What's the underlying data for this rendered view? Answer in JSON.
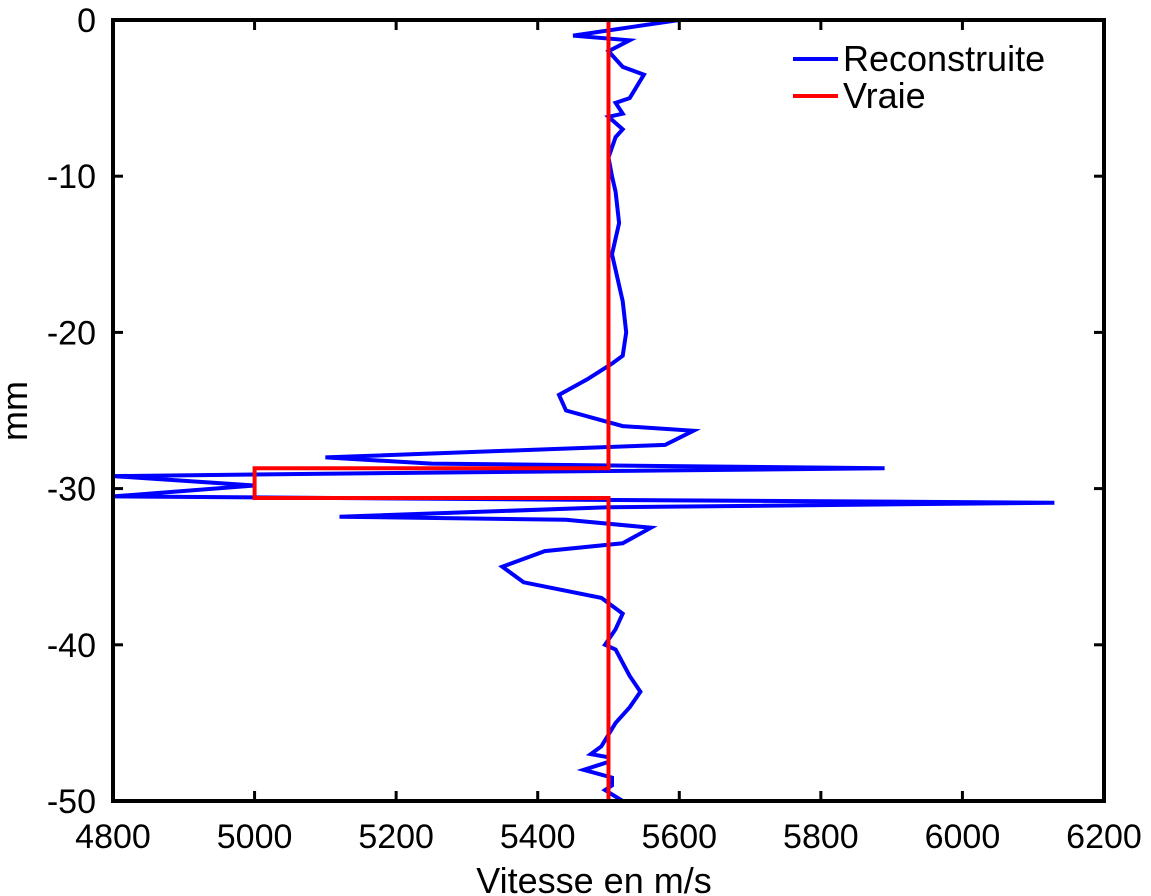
{
  "chart_data": {
    "type": "line",
    "title": "",
    "xlabel": "Vitesse en m/s",
    "ylabel": "mm",
    "xlim": [
      4800,
      6200
    ],
    "ylim": [
      -50,
      0
    ],
    "xticks": [
      4800,
      5000,
      5200,
      5400,
      5600,
      5800,
      6000,
      6200
    ],
    "yticks": [
      0,
      -10,
      -20,
      -30,
      -40,
      -50
    ],
    "grid": false,
    "legend_position": "top-right",
    "series": [
      {
        "name": "Reconstruite",
        "color": "#0000ff",
        "points": [
          [
            5600,
            0
          ],
          [
            5450,
            -1
          ],
          [
            5530,
            -1.3
          ],
          [
            5500,
            -2
          ],
          [
            5520,
            -3
          ],
          [
            5550,
            -3.5
          ],
          [
            5530,
            -5
          ],
          [
            5510,
            -5.3
          ],
          [
            5520,
            -6
          ],
          [
            5500,
            -6.2
          ],
          [
            5520,
            -7
          ],
          [
            5510,
            -7.5
          ],
          [
            5500,
            -8.8
          ],
          [
            5505,
            -10
          ],
          [
            5510,
            -11
          ],
          [
            5515,
            -13
          ],
          [
            5505,
            -15
          ],
          [
            5510,
            -16
          ],
          [
            5520,
            -18
          ],
          [
            5525,
            -20
          ],
          [
            5520,
            -21.5
          ],
          [
            5505,
            -22
          ],
          [
            5470,
            -23
          ],
          [
            5430,
            -24
          ],
          [
            5440,
            -25
          ],
          [
            5520,
            -26
          ],
          [
            5620,
            -26.3
          ],
          [
            5580,
            -27.2
          ],
          [
            5400,
            -27.5
          ],
          [
            5100,
            -28
          ],
          [
            5250,
            -28.4
          ],
          [
            5890,
            -28.7
          ],
          [
            5200,
            -29
          ],
          [
            4800,
            -29.2
          ],
          [
            5000,
            -29.8
          ],
          [
            4800,
            -30.5
          ],
          [
            5400,
            -30.7
          ],
          [
            6130,
            -30.9
          ],
          [
            5500,
            -31.2
          ],
          [
            5120,
            -31.8
          ],
          [
            5440,
            -32
          ],
          [
            5560,
            -32.5
          ],
          [
            5520,
            -33.5
          ],
          [
            5410,
            -34
          ],
          [
            5350,
            -35
          ],
          [
            5380,
            -36
          ],
          [
            5490,
            -37
          ],
          [
            5520,
            -38
          ],
          [
            5510,
            -39
          ],
          [
            5495,
            -40
          ],
          [
            5510,
            -40.3
          ],
          [
            5530,
            -42
          ],
          [
            5545,
            -43
          ],
          [
            5530,
            -44
          ],
          [
            5510,
            -45
          ],
          [
            5490,
            -46.5
          ],
          [
            5475,
            -47
          ],
          [
            5500,
            -47.2
          ],
          [
            5500,
            -47.5
          ],
          [
            5465,
            -48
          ],
          [
            5505,
            -48.5
          ],
          [
            5505,
            -49
          ],
          [
            5495,
            -49.3
          ],
          [
            5520,
            -50
          ]
        ]
      },
      {
        "name": "Vraie",
        "color": "#ff0000",
        "points": [
          [
            5500,
            0
          ],
          [
            5500,
            -28.7
          ],
          [
            5000,
            -28.7
          ],
          [
            5000,
            -30.6
          ],
          [
            5500,
            -30.6
          ],
          [
            5500,
            -50
          ]
        ]
      }
    ]
  }
}
